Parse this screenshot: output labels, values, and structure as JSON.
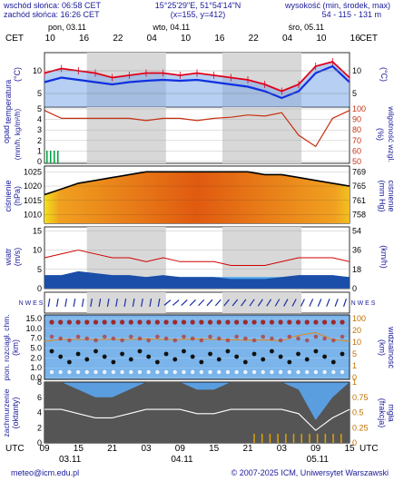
{
  "header": {
    "sunrise": "wschód słońca: 06:58 CET",
    "sunset": "zachód słońca: 16:26 CET",
    "coords": "15°25'29\"E, 51°54'14\"N",
    "grid": "(x=155, y=412)",
    "elevation_label": "wysokość (min, środek, max)",
    "elevation_values": "54 - 115 - 131 m"
  },
  "time_axis": {
    "tz_top": "CET",
    "tz_bottom": "UTC",
    "days_top": [
      "pon, 03.11",
      "wto, 04.11",
      "śro, 05.11"
    ],
    "hours_top": [
      "10",
      "16",
      "22",
      "04",
      "10",
      "16",
      "22",
      "04",
      "10",
      "16"
    ],
    "hours_bottom": [
      "09",
      "15",
      "21",
      "03",
      "09",
      "15",
      "21",
      "03",
      "09",
      "15"
    ],
    "days_bottom": [
      "03.11",
      "04.11",
      "05.11"
    ]
  },
  "panels": {
    "temperature": {
      "label_left": "temperatura",
      "unit_left": "(°C)",
      "unit_right": "(°C)",
      "ticks": [
        "10",
        "5"
      ]
    },
    "precip": {
      "label_left": "opad",
      "unit_left": "(mm/h, kg/m²/h)",
      "label_right": "wilgotność wzgl.",
      "unit_right": "(%)",
      "ticks_left": [
        "5",
        "4",
        "3",
        "2",
        "1",
        "0"
      ],
      "ticks_right": [
        "100",
        "90",
        "80",
        "70",
        "60",
        "50"
      ]
    },
    "pressure": {
      "label_left": "ciśnienie",
      "unit_left": "(hPa)",
      "label_right": "ciśnienie",
      "unit_right": "(mm Hg)",
      "ticks_left": [
        "1025",
        "1020",
        "1015",
        "1010"
      ],
      "ticks_right": [
        "769",
        "765",
        "761",
        "758"
      ]
    },
    "wind": {
      "label_left": "wiatr",
      "unit_left": "(m/s)",
      "unit_right": "(km/h)",
      "ticks_left": [
        "15",
        "10",
        "5",
        "0"
      ],
      "ticks_right": [
        "54",
        "36",
        "18",
        "0"
      ]
    },
    "wind_dir": {
      "compass_left": "N W E S",
      "compass_right": "N W E S"
    },
    "visibility": {
      "label_left": "pion. rozciągł. chm.",
      "unit_left": "(km)",
      "label_right": "widzialność",
      "unit_right": "(km)",
      "ticks_left": [
        "15.0",
        "10.0",
        "7.0",
        "5.0",
        "2.0",
        "1.0",
        "0.0"
      ],
      "ticks_right": [
        "100",
        "20",
        "10",
        "5",
        "1",
        "0"
      ]
    },
    "clouds": {
      "label_left": "zachmurzenie",
      "unit_left": "(oktanty)",
      "label_right": "mgła",
      "unit_right": "(frakcja)",
      "ticks_left": [
        "8",
        "6",
        "4",
        "2",
        "0"
      ],
      "ticks_right": [
        "1",
        "0.75",
        "0.5",
        "0.25",
        "0"
      ]
    }
  },
  "footer": {
    "email": "meteo@icm.edu.pl",
    "copyright": "© 2007-2025 ICM, Uniwersytet Warszawski"
  },
  "colors": {
    "temp_line": "#e0001a",
    "temp_bg": "#7aa7e8",
    "dew_line": "#1030e0",
    "humidity_line": "#c83010",
    "precip_bar": "#00a040",
    "pressure_fill": "#e07018",
    "wind_line": "#d00000",
    "wind_area": "#1a4ea8",
    "vis_bg": "#7ab4ea",
    "cloud_dark": "#555555",
    "fog_bar": "#e0a000",
    "night_shade": "#d8d8d8"
  },
  "chart_data": {
    "type": "line",
    "x_hours_utc": [
      0,
      3,
      6,
      9,
      12,
      15,
      18,
      21,
      24,
      27,
      30,
      33,
      36,
      39,
      42,
      45,
      48,
      51,
      54
    ],
    "x_start": "2025-11-03 09:00 UTC",
    "series": [
      {
        "name": "temperatura",
        "unit": "°C",
        "values": [
          9.5,
          10.5,
          10.0,
          9.5,
          8.5,
          9.0,
          9.5,
          9.5,
          9.0,
          9.5,
          9.0,
          8.5,
          8.0,
          7.0,
          5.5,
          7.0,
          11.0,
          12.0,
          8.5
        ]
      },
      {
        "name": "punkt rosy",
        "unit": "°C",
        "values": [
          7.5,
          8.5,
          8.0,
          7.5,
          7.0,
          7.5,
          7.8,
          8.0,
          7.8,
          8.0,
          7.5,
          7.0,
          6.5,
          5.5,
          4.0,
          5.5,
          9.5,
          11.0,
          7.5
        ]
      },
      {
        "name": "wilgotność wzgl.",
        "unit": "%",
        "values": [
          97,
          90,
          90,
          90,
          90,
          90,
          88,
          90,
          90,
          88,
          90,
          91,
          93,
          92,
          95,
          75,
          65,
          90,
          97
        ]
      },
      {
        "name": "ciśnienie",
        "unit": "hPa",
        "values": [
          1017,
          1019,
          1021,
          1022,
          1023,
          1024,
          1025,
          1025,
          1025,
          1025,
          1025,
          1025,
          1025,
          1024,
          1024,
          1023,
          1022,
          1021,
          1020
        ]
      },
      {
        "name": "wiatr",
        "unit": "m/s",
        "values": [
          3.5,
          3.5,
          4.5,
          4.0,
          3.5,
          3.5,
          3.0,
          3.5,
          3.0,
          3.0,
          3.0,
          2.5,
          2.5,
          2.5,
          3.0,
          3.5,
          3.5,
          3.5,
          3.0
        ]
      },
      {
        "name": "porywy",
        "unit": "m/s",
        "values": [
          8,
          9,
          10,
          9,
          8,
          8,
          7,
          8,
          7,
          7,
          7,
          6,
          6,
          6,
          7,
          8,
          8,
          8,
          7
        ]
      },
      {
        "name": "zachmurzenie",
        "unit": "oktanty",
        "values": [
          8,
          8,
          7,
          6,
          6,
          7,
          8,
          8,
          8,
          7,
          7,
          8,
          8,
          8,
          8,
          7,
          3,
          6,
          8
        ]
      }
    ]
  }
}
